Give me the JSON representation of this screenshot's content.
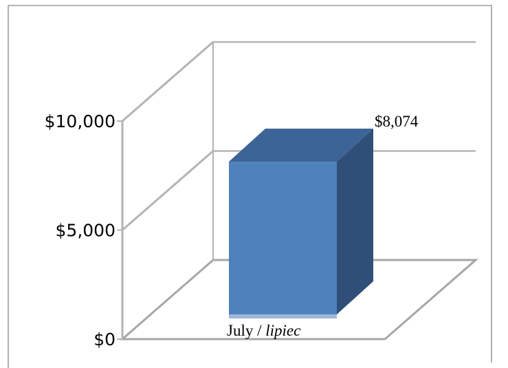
{
  "chart_data": {
    "type": "bar",
    "style": "3d-column",
    "categories": [
      "July / lipiec"
    ],
    "category_label": {
      "main": "July / ",
      "italic": "lipiec"
    },
    "values": [
      8074
    ],
    "data_labels": [
      "$8,074"
    ],
    "y_ticks": [
      0,
      5000,
      10000
    ],
    "y_tick_labels": [
      "$0",
      "$5,000",
      "$10,000"
    ],
    "ylim": [
      0,
      10000
    ],
    "grid": true,
    "legend": "none",
    "title": "",
    "xlabel": "",
    "ylabel": ""
  },
  "colors": {
    "bar_front": "#4f81bd",
    "bar_top": "#3d6496",
    "bar_side": "#2f4f78",
    "grid": "#b3b3b3",
    "floor": "#a6a6a6",
    "frame": "#868686"
  }
}
